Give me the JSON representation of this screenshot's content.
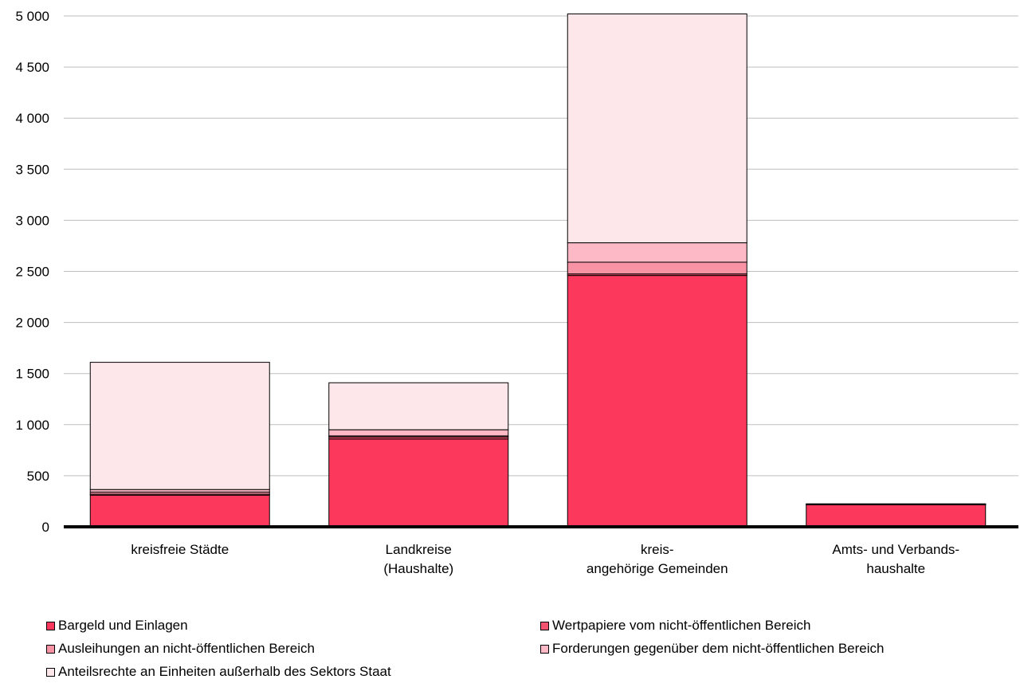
{
  "chart_data": {
    "type": "bar",
    "stacked": true,
    "categories": [
      [
        "kreisfreie Städte"
      ],
      [
        "Landkreise",
        "(Haushalte)"
      ],
      [
        "kreis-",
        "angehörige Gemeinden"
      ],
      [
        "Amts- und Verbands-",
        "haushalte"
      ]
    ],
    "series": [
      {
        "name": "Bargeld und Einlagen",
        "color": "#fc385c",
        "values": [
          310,
          860,
          2460,
          220
        ]
      },
      {
        "name": "Wertpapiere vom nicht-öffentlichen Bereich",
        "color": "#f2536f",
        "values": [
          10,
          20,
          15,
          2
        ]
      },
      {
        "name": "Ausleihungen an nicht-öffentlichen Bereich",
        "color": "#f893a5",
        "values": [
          20,
          10,
          115,
          1
        ]
      },
      {
        "name": "Forderungen gegenüber dem nicht-öffentlichen Bereich",
        "color": "#fdbac6",
        "values": [
          25,
          60,
          190,
          2
        ]
      },
      {
        "name": "Anteilsrechte an Einheiten außerhalb des Sektors Staat",
        "color": "#fde7ea",
        "values": [
          1245,
          460,
          2240,
          0
        ]
      }
    ],
    "ylim": [
      0,
      5000
    ],
    "yticks": [
      0,
      500,
      1000,
      1500,
      2000,
      2500,
      3000,
      3500,
      4000,
      4500,
      5000
    ],
    "ytick_labels": [
      "0",
      "500",
      "1 000",
      "1 500",
      "2 000",
      "2 500",
      "3 000",
      "3 500",
      "4 000",
      "4 500",
      "5 000"
    ],
    "grid": true,
    "legend_position": "bottom",
    "title": "",
    "xlabel": "",
    "ylabel": ""
  }
}
